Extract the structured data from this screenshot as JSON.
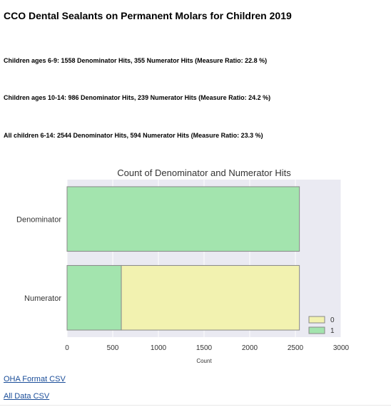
{
  "page": {
    "title": "CCO Dental Sealants on Permanent Molars for Children 2019",
    "stats": [
      "Children ages 6-9: 1558 Denominator Hits, 355 Numerator Hits (Measure Ratio: 22.8 %)",
      "Children ages 10-14: 986 Denominator Hits, 239 Numerator Hits (Measure Ratio: 24.2 %)",
      "All children 6-14: 2544 Denominator Hits, 594 Numerator Hits (Measure Ratio: 23.3 %)"
    ],
    "links": [
      "OHA Format CSV",
      "All Data CSV"
    ]
  },
  "chart_data": {
    "type": "bar",
    "orientation": "horizontal",
    "stacked": true,
    "title": "Count of Denominator and Numerator Hits",
    "xlabel": "Count",
    "ylabel": "",
    "xlim": [
      0,
      3000
    ],
    "xticks": [
      0,
      500,
      1000,
      1500,
      2000,
      2500,
      3000
    ],
    "categories": [
      "Denominator",
      "Numerator"
    ],
    "series": [
      {
        "name": "1",
        "color": "#a3e4ae",
        "values": [
          2544,
          594
        ]
      },
      {
        "name": "0",
        "color": "#f2f2b0",
        "values": [
          0,
          1950
        ]
      }
    ],
    "legend_order": [
      "0",
      "1"
    ],
    "legend_position": "bottom-right",
    "grid": true,
    "background": "#eaeaf2"
  }
}
